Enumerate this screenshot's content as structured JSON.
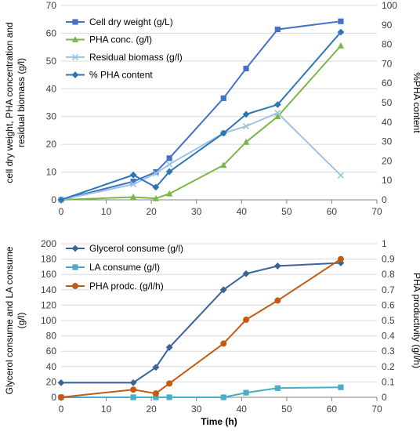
{
  "chart_data": [
    {
      "type": "line",
      "xlabel": "Time (h)",
      "ylabel_lines": [
        "cell dry weight, PHA concentration and",
        "residual biomass (g/l)"
      ],
      "y2label": "%PHA content",
      "xlim": [
        0,
        70
      ],
      "ylim": [
        0,
        70
      ],
      "y2lim": [
        0,
        100
      ],
      "xticks": [
        0,
        10,
        20,
        30,
        40,
        50,
        60,
        70
      ],
      "yticks": [
        0,
        10,
        20,
        30,
        40,
        50,
        60,
        70
      ],
      "y2ticks": [
        0,
        10,
        20,
        30,
        40,
        50,
        60,
        70,
        80,
        90,
        100
      ],
      "grid": "horizontal",
      "legend_position": "top-left",
      "series": [
        {
          "name": "Cell dry weight (g/L)",
          "axis": "left",
          "color": "#4472C4",
          "marker": "square",
          "x": [
            0,
            16,
            21,
            24,
            36,
            41,
            48,
            62
          ],
          "y": [
            0,
            6.6,
            10,
            15,
            36.6,
            47.3,
            61.4,
            64.3
          ]
        },
        {
          "name": "PHA conc. (g/l)",
          "axis": "left",
          "color": "#7AB648",
          "marker": "triangle",
          "x": [
            0,
            16,
            21,
            24,
            36,
            41,
            48,
            62
          ],
          "y": [
            0,
            1,
            0.5,
            2.2,
            12.5,
            20.8,
            30,
            55.5
          ]
        },
        {
          "name": "Residual biomass (g/l)",
          "axis": "left",
          "color": "#9DC3E6",
          "marker": "x",
          "x": [
            0,
            16,
            21,
            24,
            36,
            41,
            48,
            62
          ],
          "y": [
            0,
            5.6,
            9.5,
            12.8,
            24,
            26.5,
            31.3,
            8.8
          ]
        },
        {
          "name": "% PHA content",
          "axis": "right",
          "color": "#2E75B6",
          "marker": "diamond",
          "x": [
            0,
            16,
            21,
            24,
            36,
            41,
            48,
            62
          ],
          "y": [
            0,
            12.8,
            6.5,
            14.5,
            34.3,
            44,
            49,
            86.3
          ]
        }
      ]
    },
    {
      "type": "line",
      "xlabel": "Time (h)",
      "ylabel_lines": [
        "Glycerol consume and LA consume",
        "(g/l)"
      ],
      "y2label": "PHA productivity (g/l/h)",
      "xlim": [
        0,
        70
      ],
      "ylim": [
        0,
        200
      ],
      "y2lim": [
        0,
        1
      ],
      "xticks": [
        0,
        10,
        20,
        30,
        40,
        50,
        60,
        70
      ],
      "yticks": [
        0,
        20,
        40,
        60,
        80,
        100,
        120,
        140,
        160,
        180,
        200
      ],
      "y2ticks": [
        0,
        0.1,
        0.2,
        0.3,
        0.4,
        0.5,
        0.6,
        0.7,
        0.8,
        0.9,
        1
      ],
      "grid": "horizontal",
      "legend_position": "top-left",
      "series": [
        {
          "name": "Glycerol consume (g/l)",
          "axis": "left",
          "color": "#3B6496",
          "marker": "diamond",
          "x": [
            0,
            16,
            21,
            24,
            36,
            41,
            48,
            62
          ],
          "y": [
            19,
            19,
            39,
            65,
            140,
            161,
            171,
            175
          ]
        },
        {
          "name": "LA consume (g/l)",
          "axis": "left",
          "color": "#4BACC6",
          "marker": "square",
          "x": [
            0,
            16,
            21,
            24,
            36,
            41,
            48,
            62
          ],
          "y": [
            0,
            0,
            0,
            0,
            0,
            6,
            12,
            13
          ]
        },
        {
          "name": "PHA prodc. (g/l/h)",
          "axis": "right",
          "color": "#C55A11",
          "marker": "circle",
          "x": [
            0,
            16,
            21,
            24,
            36,
            41,
            48,
            62
          ],
          "y": [
            0,
            0.05,
            0.025,
            0.09,
            0.35,
            0.505,
            0.63,
            0.9
          ]
        }
      ]
    }
  ]
}
